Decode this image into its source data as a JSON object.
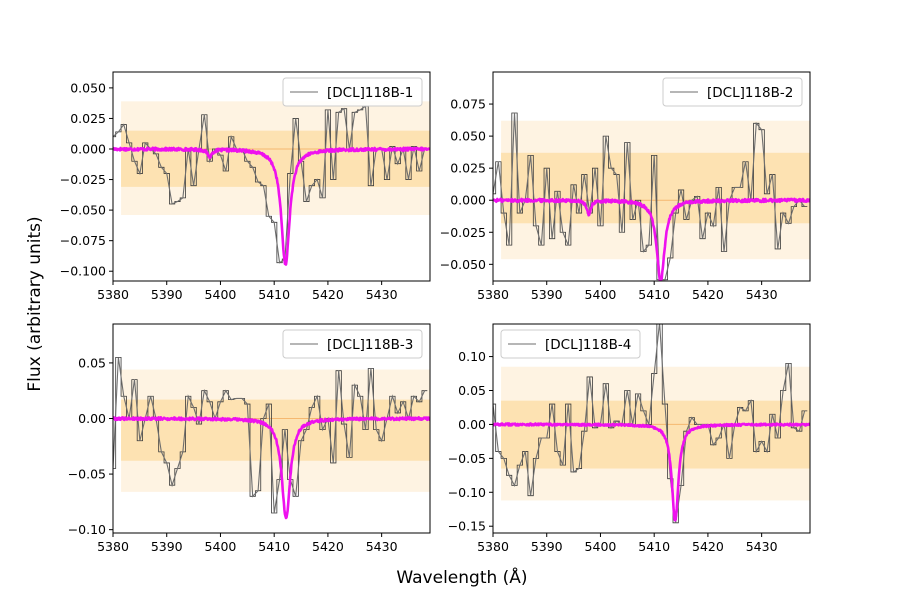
{
  "figure": {
    "xlabel": "Wavelength (Å)",
    "ylabel": "Flux (arbitrary units)"
  },
  "colors": {
    "observed": "#6e6e6e",
    "model": "#ee11ee",
    "band_inner": "#fde2b2",
    "band_outer": "#fef3e2",
    "zero_line": "#f5b870",
    "axes": "#000000"
  },
  "chart_data": [
    {
      "type": "line",
      "panel": "top-left",
      "legend": "[DCL]118B-1",
      "legend_loc": "top-right",
      "xlim": [
        5380,
        5439
      ],
      "ylim": [
        -0.108,
        0.063
      ],
      "xticks": [
        5380,
        5390,
        5400,
        5410,
        5420,
        5430
      ],
      "xtick_labels": [
        "5380",
        "5390",
        "5400",
        "5410",
        "5420",
        "5430"
      ],
      "yticks": [
        -0.1,
        -0.075,
        -0.05,
        -0.025,
        0.0,
        0.025,
        0.05
      ],
      "ytick_labels": [
        "−0.100",
        "−0.075",
        "−0.050",
        "−0.025",
        "0.000",
        "0.025",
        "0.050"
      ],
      "band_inner": [
        -0.031,
        0.015
      ],
      "band_outer": [
        -0.054,
        0.039
      ],
      "series": [
        {
          "name": "observed",
          "x": [
            5380,
            5381,
            5382,
            5383,
            5384,
            5385,
            5386,
            5387,
            5388,
            5389,
            5390,
            5391,
            5392,
            5393,
            5394,
            5395,
            5396,
            5397,
            5398,
            5399,
            5400,
            5401,
            5402,
            5403,
            5404,
            5405,
            5406,
            5407,
            5408,
            5409,
            5410,
            5411,
            5412,
            5413,
            5414,
            5415,
            5416,
            5417,
            5418,
            5419,
            5420,
            5421,
            5422,
            5423,
            5424,
            5425,
            5426,
            5427,
            5428,
            5429,
            5430,
            5431,
            5432,
            5433,
            5434,
            5435,
            5436,
            5437,
            5438
          ],
          "values": [
            0.01,
            0.014,
            0.02,
            0.005,
            -0.01,
            -0.02,
            0.005,
            0.0,
            -0.004,
            -0.015,
            -0.02,
            -0.045,
            -0.043,
            -0.04,
            0.0,
            -0.03,
            0.0,
            0.028,
            -0.01,
            0.0,
            -0.005,
            -0.018,
            0.01,
            0.0,
            0.0,
            -0.01,
            -0.015,
            -0.027,
            -0.03,
            -0.055,
            -0.06,
            -0.093,
            -0.09,
            -0.02,
            0.025,
            -0.01,
            -0.043,
            -0.03,
            -0.025,
            -0.04,
            0.032,
            -0.025,
            0.03,
            0.033,
            0.0,
            0.03,
            0.032,
            0.035,
            -0.03,
            0.0,
            0.0,
            -0.025,
            0.002,
            -0.012,
            0.0,
            -0.025,
            0.002,
            -0.018,
            0.0
          ]
        },
        {
          "name": "model",
          "lines": [
            {
              "center": 5398.0,
              "depth": 0.006,
              "width": 0.5
            },
            {
              "center": 5412.1,
              "depth": 0.095,
              "width": 0.95
            }
          ],
          "noise": 0.0012
        }
      ]
    },
    {
      "type": "line",
      "panel": "top-right",
      "legend": "[DCL]118B-2",
      "legend_loc": "top-right",
      "xlim": [
        5380,
        5439
      ],
      "ylim": [
        -0.063,
        0.1
      ],
      "xticks": [
        5380,
        5390,
        5400,
        5410,
        5420,
        5430
      ],
      "xtick_labels": [
        "5380",
        "5390",
        "5400",
        "5410",
        "5420",
        "5430"
      ],
      "yticks": [
        -0.05,
        -0.025,
        0.0,
        0.025,
        0.05,
        0.075
      ],
      "ytick_labels": [
        "−0.050",
        "−0.025",
        "0.000",
        "0.025",
        "0.050",
        "0.075"
      ],
      "band_inner": [
        -0.018,
        0.037
      ],
      "band_outer": [
        -0.046,
        0.062
      ],
      "series": [
        {
          "name": "observed",
          "x": [
            5380,
            5381,
            5382,
            5383,
            5384,
            5385,
            5386,
            5387,
            5388,
            5389,
            5390,
            5391,
            5392,
            5393,
            5394,
            5395,
            5396,
            5397,
            5398,
            5399,
            5400,
            5401,
            5402,
            5403,
            5404,
            5405,
            5406,
            5407,
            5408,
            5409,
            5410,
            5411,
            5412,
            5413,
            5414,
            5415,
            5416,
            5417,
            5418,
            5419,
            5420,
            5421,
            5422,
            5423,
            5424,
            5425,
            5426,
            5427,
            5428,
            5429,
            5430,
            5431,
            5432,
            5433,
            5434,
            5435,
            5436,
            5437,
            5438
          ],
          "values": [
            0.005,
            0.03,
            -0.01,
            -0.035,
            0.068,
            -0.01,
            0.0,
            0.035,
            -0.02,
            -0.035,
            0.025,
            -0.03,
            0.007,
            -0.025,
            -0.035,
            0.012,
            -0.01,
            0.02,
            -0.01,
            0.025,
            -0.02,
            0.05,
            0.025,
            0.02,
            -0.025,
            0.045,
            -0.015,
            0.0,
            -0.04,
            -0.035,
            0.035,
            -0.062,
            -0.062,
            -0.045,
            -0.01,
            0.008,
            -0.015,
            0.0,
            0.003,
            -0.03,
            -0.01,
            -0.02,
            0.01,
            -0.04,
            0.0,
            0.01,
            0.01,
            0.03,
            0.0,
            0.06,
            0.055,
            0.005,
            0.02,
            -0.038,
            -0.01,
            -0.018,
            -0.005,
            0.0,
            -0.005
          ]
        },
        {
          "name": "model",
          "lines": [
            {
              "center": 5397.8,
              "depth": 0.011,
              "width": 0.45
            },
            {
              "center": 5411.2,
              "depth": 0.063,
              "width": 0.9
            }
          ],
          "noise": 0.0012
        }
      ]
    },
    {
      "type": "line",
      "panel": "bottom-left",
      "legend": "[DCL]118B-3",
      "legend_loc": "top-right",
      "xlim": [
        5380,
        5439
      ],
      "ylim": [
        -0.103,
        0.085
      ],
      "xticks": [
        5380,
        5390,
        5400,
        5410,
        5420,
        5430
      ],
      "xtick_labels": [
        "5380",
        "5390",
        "5400",
        "5410",
        "5420",
        "5430"
      ],
      "yticks": [
        -0.1,
        -0.05,
        0.0,
        0.05
      ],
      "ytick_labels": [
        "−0.10",
        "−0.05",
        "0.00",
        "0.05"
      ],
      "band_inner": [
        -0.038,
        0.017
      ],
      "band_outer": [
        -0.066,
        0.044
      ],
      "series": [
        {
          "name": "observed",
          "x": [
            5380,
            5381,
            5382,
            5383,
            5384,
            5385,
            5386,
            5387,
            5388,
            5389,
            5390,
            5391,
            5392,
            5393,
            5394,
            5395,
            5396,
            5397,
            5398,
            5399,
            5400,
            5401,
            5402,
            5403,
            5404,
            5405,
            5406,
            5407,
            5408,
            5409,
            5410,
            5411,
            5412,
            5413,
            5414,
            5415,
            5416,
            5417,
            5418,
            5419,
            5420,
            5421,
            5422,
            5423,
            5424,
            5425,
            5426,
            5427,
            5428,
            5429,
            5430,
            5431,
            5432,
            5433,
            5434,
            5435,
            5436,
            5437,
            5438
          ],
          "values": [
            -0.045,
            0.055,
            0.02,
            0.0,
            0.035,
            -0.02,
            0.0,
            0.02,
            0.0,
            -0.03,
            -0.04,
            -0.06,
            -0.045,
            -0.03,
            0.02,
            0.01,
            -0.005,
            0.025,
            0.015,
            0.0,
            0.015,
            0.025,
            0.017,
            0.018,
            0.018,
            0.013,
            -0.07,
            -0.065,
            0.0,
            0.013,
            -0.085,
            -0.055,
            -0.01,
            -0.055,
            -0.07,
            -0.02,
            -0.01,
            0.01,
            0.02,
            -0.01,
            0.0,
            -0.04,
            0.043,
            -0.005,
            -0.035,
            0.03,
            0.02,
            -0.01,
            0.045,
            -0.01,
            -0.02,
            0.0,
            0.02,
            0.005,
            0.015,
            0.0,
            0.02,
            0.015,
            0.025
          ]
        },
        {
          "name": "model",
          "lines": [
            {
              "center": 5412.2,
              "depth": 0.09,
              "width": 0.95
            }
          ],
          "noise": 0.0012
        }
      ]
    },
    {
      "type": "line",
      "panel": "bottom-right",
      "legend": "[DCL]118B-4",
      "legend_loc": "top-left",
      "xlim": [
        5380,
        5439
      ],
      "ylim": [
        -0.16,
        0.148
      ],
      "xticks": [
        5380,
        5390,
        5400,
        5410,
        5420,
        5430
      ],
      "xtick_labels": [
        "5380",
        "5390",
        "5400",
        "5410",
        "5420",
        "5430"
      ],
      "yticks": [
        -0.15,
        -0.1,
        -0.05,
        0.0,
        0.05,
        0.1
      ],
      "ytick_labels": [
        "−0.15",
        "−0.10",
        "−0.05",
        "0.00",
        "0.05",
        "0.10"
      ],
      "band_inner": [
        -0.065,
        0.035
      ],
      "band_outer": [
        -0.112,
        0.085
      ],
      "series": [
        {
          "name": "observed",
          "x": [
            5380,
            5381,
            5382,
            5383,
            5384,
            5385,
            5386,
            5387,
            5388,
            5389,
            5390,
            5391,
            5392,
            5393,
            5394,
            5395,
            5396,
            5397,
            5398,
            5399,
            5400,
            5401,
            5402,
            5403,
            5404,
            5405,
            5406,
            5407,
            5408,
            5409,
            5410,
            5411,
            5412,
            5413,
            5414,
            5415,
            5416,
            5417,
            5418,
            5419,
            5420,
            5421,
            5422,
            5423,
            5424,
            5425,
            5426,
            5427,
            5428,
            5429,
            5430,
            5431,
            5432,
            5433,
            5434,
            5435,
            5436,
            5437,
            5438
          ],
          "values": [
            0.03,
            -0.04,
            -0.05,
            -0.075,
            -0.09,
            -0.06,
            -0.04,
            -0.105,
            -0.05,
            -0.02,
            -0.02,
            0.03,
            -0.04,
            -0.06,
            0.03,
            -0.07,
            -0.065,
            -0.01,
            0.07,
            -0.005,
            0.0,
            0.06,
            -0.005,
            0.005,
            0.0,
            0.05,
            0.0,
            0.045,
            0.02,
            0.0,
            0.075,
            0.15,
            0.03,
            -0.08,
            -0.145,
            -0.09,
            -0.01,
            0.01,
            0.0,
            0.0,
            0.0,
            -0.03,
            -0.02,
            0.0,
            -0.05,
            0.0,
            0.025,
            0.02,
            0.035,
            -0.04,
            -0.025,
            -0.04,
            0.015,
            -0.02,
            0.05,
            0.09,
            -0.005,
            -0.01,
            0.02
          ]
        },
        {
          "name": "model",
          "lines": [
            {
              "center": 5413.9,
              "depth": 0.142,
              "width": 0.75
            }
          ],
          "noise": 0.0015
        }
      ]
    }
  ]
}
